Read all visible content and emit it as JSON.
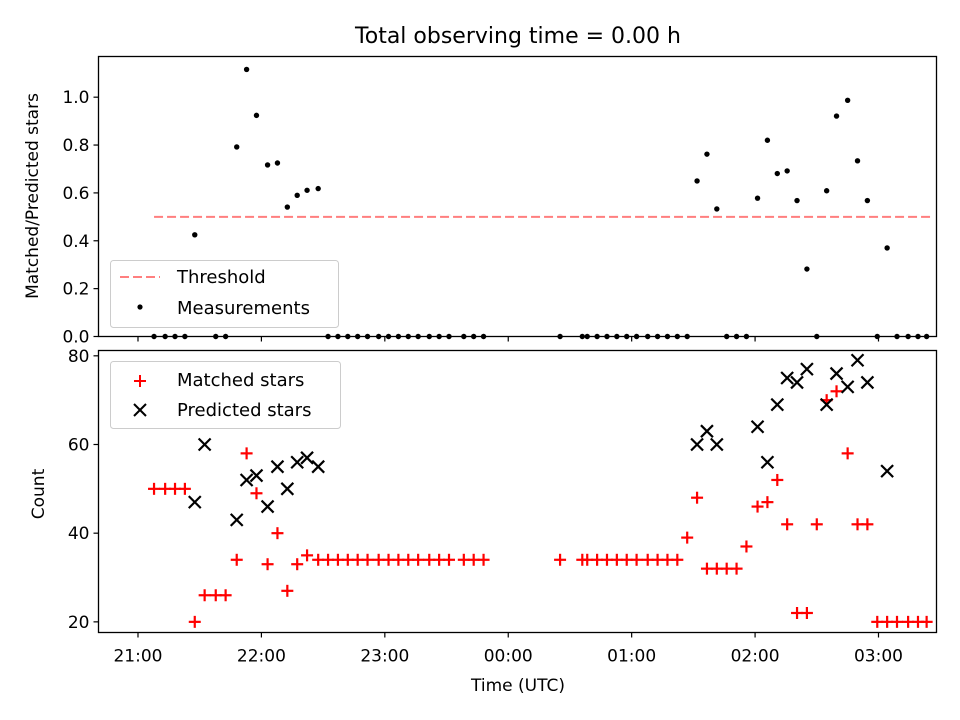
{
  "title": "Total observing time = 0.00 h",
  "colors": {
    "threshold": "#ff7f7f",
    "measurement": "#000000",
    "matched": "#ff0000",
    "predicted": "#000000"
  },
  "chart_data": [
    {
      "type": "scatter",
      "ylabel": "Matched/Predicted stars",
      "ylim": [
        0,
        1.17
      ],
      "yticks": [
        "0.0",
        "0.2",
        "0.4",
        "0.6",
        "0.8",
        "1.0"
      ],
      "xlim": [
        -0.32,
        6.47
      ],
      "xticks": [
        "21:00",
        "22:00",
        "23:00",
        "00:00",
        "01:00",
        "02:00",
        "03:00"
      ],
      "legend": {
        "position": "lower-left",
        "threshold_label": "Threshold",
        "measurements_label": "Measurements"
      },
      "threshold": {
        "value": 0.5,
        "x_range": [
          0.13,
          6.43
        ]
      },
      "series": [
        {
          "name": "Measurements",
          "x": [
            0.13,
            0.22,
            0.3,
            0.38,
            0.46,
            0.63,
            0.71,
            0.8,
            0.88,
            0.96,
            1.05,
            1.13,
            1.21,
            1.29,
            1.37,
            1.46,
            1.54,
            1.62,
            1.7,
            1.78,
            1.86,
            1.95,
            2.03,
            2.11,
            2.19,
            2.27,
            2.36,
            2.44,
            2.52,
            2.64,
            2.72,
            2.8,
            3.42,
            3.6,
            3.64,
            3.72,
            3.8,
            3.88,
            3.96,
            4.04,
            4.13,
            4.21,
            4.29,
            4.37,
            4.45,
            4.53,
            4.61,
            4.69,
            4.77,
            4.85,
            4.93,
            5.02,
            5.1,
            5.18,
            5.26,
            5.34,
            5.42,
            5.5,
            5.58,
            5.66,
            5.75,
            5.83,
            5.91,
            5.99,
            6.07,
            6.15,
            6.24,
            6.32,
            6.39
          ],
          "y": [
            0.0,
            0.0,
            0.0,
            0.0,
            0.425,
            0.0,
            0.0,
            0.792,
            1.116,
            0.924,
            0.717,
            0.725,
            0.541,
            0.59,
            0.611,
            0.618,
            0.0,
            0.0,
            0.0,
            0.0,
            0.0,
            0.0,
            0.0,
            0.0,
            0.0,
            0.0,
            0.0,
            0.0,
            0.0,
            0.0,
            0.0,
            0.0,
            0.0,
            0.0,
            0.0,
            0.0,
            0.0,
            0.0,
            0.0,
            0.0,
            0.0,
            0.0,
            0.0,
            0.0,
            0.0,
            0.65,
            0.762,
            0.533,
            0.0,
            0.0,
            0.0,
            0.578,
            0.82,
            0.681,
            0.692,
            0.568,
            0.282,
            0.0,
            0.609,
            0.921,
            0.987,
            0.734,
            0.568,
            0.0,
            0.37,
            0.0,
            0.0,
            0.0,
            0.0
          ]
        }
      ]
    },
    {
      "type": "scatter",
      "ylabel": "Count",
      "xlabel": "Time (UTC)",
      "ylim": [
        17.6,
        81.2
      ],
      "yticks": [
        "20",
        "40",
        "60",
        "80"
      ],
      "xlim": [
        -0.32,
        6.47
      ],
      "xticks": [
        "21:00",
        "22:00",
        "23:00",
        "00:00",
        "01:00",
        "02:00",
        "03:00"
      ],
      "legend": {
        "position": "upper-left"
      },
      "series": [
        {
          "name": "Matched stars",
          "x": [
            0.13,
            0.22,
            0.3,
            0.38,
            0.46,
            0.54,
            0.63,
            0.71,
            0.8,
            0.88,
            0.96,
            1.05,
            1.13,
            1.21,
            1.29,
            1.37,
            1.46,
            1.54,
            1.62,
            1.7,
            1.78,
            1.86,
            1.95,
            2.03,
            2.11,
            2.19,
            2.27,
            2.36,
            2.44,
            2.52,
            2.64,
            2.72,
            2.8,
            3.42,
            3.6,
            3.64,
            3.72,
            3.8,
            3.88,
            3.96,
            4.04,
            4.13,
            4.21,
            4.29,
            4.37,
            4.45,
            4.53,
            4.61,
            4.69,
            4.77,
            4.85,
            4.93,
            5.02,
            5.1,
            5.18,
            5.26,
            5.34,
            5.42,
            5.5,
            5.58,
            5.66,
            5.75,
            5.83,
            5.91,
            5.99,
            6.07,
            6.15,
            6.24,
            6.32,
            6.39
          ],
          "y": [
            50,
            50,
            50,
            50,
            20,
            26,
            26,
            26,
            34,
            58,
            49,
            33,
            40,
            27,
            33,
            35,
            34,
            34,
            34,
            34,
            34,
            34,
            34,
            34,
            34,
            34,
            34,
            34,
            34,
            34,
            34,
            34,
            34,
            34,
            34,
            34,
            34,
            34,
            34,
            34,
            34,
            34,
            34,
            34,
            34,
            39,
            48,
            32,
            32,
            32,
            32,
            37,
            46,
            47,
            52,
            42,
            22,
            22,
            42,
            70,
            72,
            58,
            42,
            42,
            20,
            20,
            20,
            20,
            20,
            20
          ]
        },
        {
          "name": "Predicted stars",
          "x": [
            0.46,
            0.54,
            0.8,
            0.88,
            0.96,
            1.05,
            1.13,
            1.21,
            1.29,
            1.37,
            1.46,
            4.53,
            4.61,
            4.69,
            5.02,
            5.1,
            5.18,
            5.26,
            5.34,
            5.42,
            5.58,
            5.66,
            5.75,
            5.83,
            5.91,
            6.07
          ],
          "y": [
            47,
            60,
            43,
            52,
            53,
            46,
            55,
            50,
            56,
            57,
            55,
            60,
            63,
            60,
            64,
            56,
            69,
            75,
            74,
            77,
            69,
            76,
            73,
            79,
            74,
            54
          ]
        }
      ]
    }
  ]
}
